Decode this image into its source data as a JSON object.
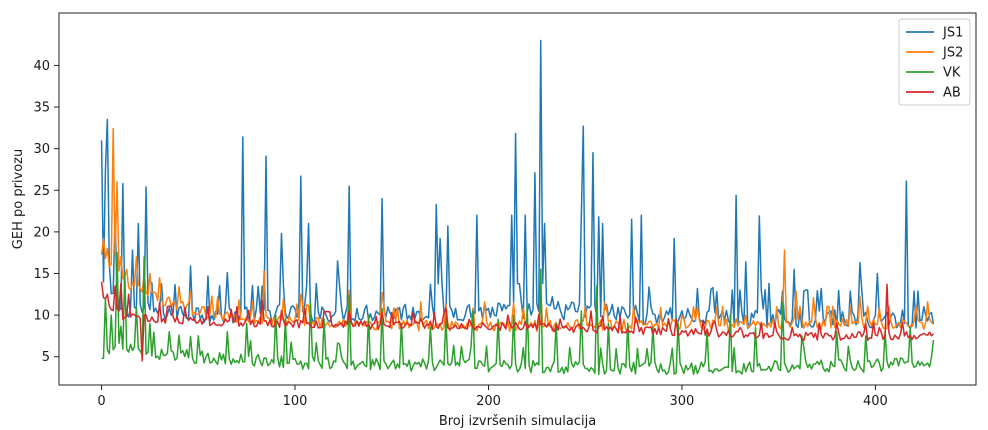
{
  "chart_data": {
    "type": "line",
    "title": "",
    "xlabel": "Broj izvršenih simulacija",
    "ylabel": "GEH po privozu",
    "xlim": [
      -22,
      452
    ],
    "ylim": [
      1.6,
      46.3
    ],
    "xticks": [
      0,
      100,
      200,
      300,
      400
    ],
    "yticks": [
      5,
      10,
      15,
      20,
      25,
      30,
      35,
      40
    ],
    "grid": false,
    "legend_position": "top-right",
    "series": [
      {
        "name": "JS1",
        "color": "#1f77b4",
        "base": [
          [
            0,
            14
          ],
          [
            10,
            11
          ],
          [
            30,
            10.5
          ],
          [
            60,
            10.2
          ],
          [
            100,
            10.3
          ],
          [
            150,
            10.4
          ],
          [
            200,
            10.5
          ],
          [
            240,
            10.6
          ],
          [
            270,
            10.2
          ],
          [
            300,
            9.9
          ],
          [
            350,
            9.7
          ],
          [
            400,
            9.6
          ],
          [
            430,
            9.6
          ]
        ],
        "peaks": [
          [
            0,
            31
          ],
          [
            2,
            27.5
          ],
          [
            3,
            33.5
          ],
          [
            7,
            22
          ],
          [
            11,
            25.8
          ],
          [
            16,
            17.8
          ],
          [
            19,
            21
          ],
          [
            23,
            25.4
          ],
          [
            46,
            15.9
          ],
          [
            55,
            14.7
          ],
          [
            65,
            15.1
          ],
          [
            73,
            31.4
          ],
          [
            85,
            29.1
          ],
          [
            93,
            19.8
          ],
          [
            103,
            26.7
          ],
          [
            107,
            21
          ],
          [
            111,
            13.8
          ],
          [
            122,
            16.5
          ],
          [
            128,
            25.5
          ],
          [
            145,
            24
          ],
          [
            173,
            23.3
          ],
          [
            175,
            19.2
          ],
          [
            179,
            20.7
          ],
          [
            194,
            22
          ],
          [
            212,
            22
          ],
          [
            214,
            31.8
          ],
          [
            219,
            22
          ],
          [
            224,
            27.1
          ],
          [
            227,
            43
          ],
          [
            229,
            21
          ],
          [
            233,
            12.2
          ],
          [
            248,
            22
          ],
          [
            249,
            32.7
          ],
          [
            254,
            29.5
          ],
          [
            257,
            21.8
          ],
          [
            259,
            21
          ],
          [
            274,
            21.5
          ],
          [
            279,
            22
          ],
          [
            296,
            19.2
          ],
          [
            316,
            13.3
          ],
          [
            318,
            12.8
          ],
          [
            328,
            24.4
          ],
          [
            333,
            16.4
          ],
          [
            340,
            21.9
          ],
          [
            345,
            13.8
          ],
          [
            358,
            15.5
          ],
          [
            365,
            13
          ],
          [
            372,
            13.2
          ],
          [
            392,
            16.3
          ],
          [
            401,
            15
          ],
          [
            416,
            26.1
          ],
          [
            425,
            11
          ]
        ]
      },
      {
        "name": "JS2",
        "color": "#ff7f0e",
        "base": [
          [
            0,
            18
          ],
          [
            3,
            16
          ],
          [
            8,
            15
          ],
          [
            15,
            13.5
          ],
          [
            30,
            12
          ],
          [
            50,
            10.5
          ],
          [
            80,
            9.5
          ],
          [
            120,
            9
          ],
          [
            160,
            8.8
          ],
          [
            200,
            8.8
          ],
          [
            250,
            8.8
          ],
          [
            300,
            8.9
          ],
          [
            350,
            9
          ],
          [
            400,
            9
          ],
          [
            430,
            9
          ]
        ],
        "peaks": [
          [
            1,
            19.2
          ],
          [
            3,
            18
          ],
          [
            6,
            32.4
          ],
          [
            8,
            26
          ],
          [
            10,
            17
          ],
          [
            13,
            15.5
          ],
          [
            18,
            17
          ],
          [
            25,
            15
          ],
          [
            30,
            14.5
          ],
          [
            40,
            13.4
          ],
          [
            46,
            12.8
          ],
          [
            60,
            12.2
          ],
          [
            84,
            15.3
          ],
          [
            94,
            12
          ],
          [
            103,
            12.5
          ],
          [
            128,
            13
          ],
          [
            145,
            12.7
          ],
          [
            165,
            11.6
          ],
          [
            178,
            11.3
          ],
          [
            198,
            11.6
          ],
          [
            213,
            11.5
          ],
          [
            227,
            13
          ],
          [
            250,
            11
          ],
          [
            260,
            11.5
          ],
          [
            275,
            11
          ],
          [
            300,
            10
          ],
          [
            333,
            10
          ],
          [
            353,
            17.8
          ],
          [
            359,
            12.9
          ],
          [
            368,
            12.1
          ],
          [
            392,
            12.2
          ],
          [
            402,
            10.8
          ],
          [
            427,
            11.6
          ]
        ]
      },
      {
        "name": "VK",
        "color": "#2ca02c",
        "base": [
          [
            0,
            5
          ],
          [
            5,
            6.5
          ],
          [
            15,
            6.2
          ],
          [
            30,
            5.4
          ],
          [
            60,
            4.8
          ],
          [
            100,
            4.4
          ],
          [
            150,
            4.1
          ],
          [
            200,
            3.9
          ],
          [
            250,
            3.7
          ],
          [
            300,
            3.7
          ],
          [
            350,
            3.8
          ],
          [
            400,
            4
          ],
          [
            430,
            4.5
          ]
        ],
        "peaks": [
          [
            2,
            12
          ],
          [
            5,
            10
          ],
          [
            8,
            17.5
          ],
          [
            12,
            15
          ],
          [
            18,
            11
          ],
          [
            22,
            17
          ],
          [
            25,
            9
          ],
          [
            35,
            8
          ],
          [
            50,
            7.5
          ],
          [
            65,
            8
          ],
          [
            75,
            9
          ],
          [
            90,
            10
          ],
          [
            95,
            9.5
          ],
          [
            108,
            11.5
          ],
          [
            115,
            9.5
          ],
          [
            128,
            12.4
          ],
          [
            138,
            10
          ],
          [
            145,
            10.8
          ],
          [
            155,
            9
          ],
          [
            170,
            8.5
          ],
          [
            178,
            9.5
          ],
          [
            192,
            10.5
          ],
          [
            205,
            9.5
          ],
          [
            213,
            10
          ],
          [
            220,
            11
          ],
          [
            227,
            15.5
          ],
          [
            235,
            9
          ],
          [
            248,
            10.5
          ],
          [
            256,
            13.5
          ],
          [
            262,
            9
          ],
          [
            272,
            9
          ],
          [
            285,
            8.5
          ],
          [
            298,
            9
          ],
          [
            313,
            8
          ],
          [
            325,
            10
          ],
          [
            338,
            8.5
          ],
          [
            352,
            11.5
          ],
          [
            362,
            7.5
          ],
          [
            380,
            8
          ],
          [
            395,
            7.5
          ],
          [
            405,
            8
          ],
          [
            418,
            8.5
          ],
          [
            430,
            7
          ]
        ]
      },
      {
        "name": "AB",
        "color": "#d62728",
        "base": [
          [
            0,
            12
          ],
          [
            10,
            10
          ],
          [
            30,
            9.6
          ],
          [
            60,
            9.2
          ],
          [
            100,
            9
          ],
          [
            140,
            8.8
          ],
          [
            180,
            8.8
          ],
          [
            220,
            8.6
          ],
          [
            260,
            8.4
          ],
          [
            300,
            8
          ],
          [
            330,
            7.7
          ],
          [
            360,
            7.5
          ],
          [
            400,
            7.5
          ],
          [
            430,
            7.6
          ]
        ],
        "peaks": [
          [
            0,
            14
          ],
          [
            3,
            12.5
          ],
          [
            7,
            13.5
          ],
          [
            10,
            13.8
          ],
          [
            14,
            12.5
          ],
          [
            20,
            9.6
          ],
          [
            21,
            4.5
          ],
          [
            30,
            11.5
          ],
          [
            55,
            11
          ],
          [
            70,
            11
          ],
          [
            83,
            11.8
          ],
          [
            105,
            10.8
          ],
          [
            128,
            10.5
          ],
          [
            142,
            9.8
          ],
          [
            150,
            10.3
          ],
          [
            165,
            9.5
          ],
          [
            178,
            10.8
          ],
          [
            190,
            9.5
          ],
          [
            210,
            10
          ],
          [
            219,
            9.2
          ],
          [
            237,
            9.5
          ],
          [
            253,
            10.5
          ],
          [
            277,
            9
          ],
          [
            290,
            8.5
          ],
          [
            316,
            8.9
          ],
          [
            330,
            8.5
          ],
          [
            357,
            8.5
          ],
          [
            380,
            9
          ],
          [
            402,
            8.5
          ],
          [
            406,
            13.7
          ],
          [
            425,
            7.8
          ]
        ]
      }
    ]
  }
}
